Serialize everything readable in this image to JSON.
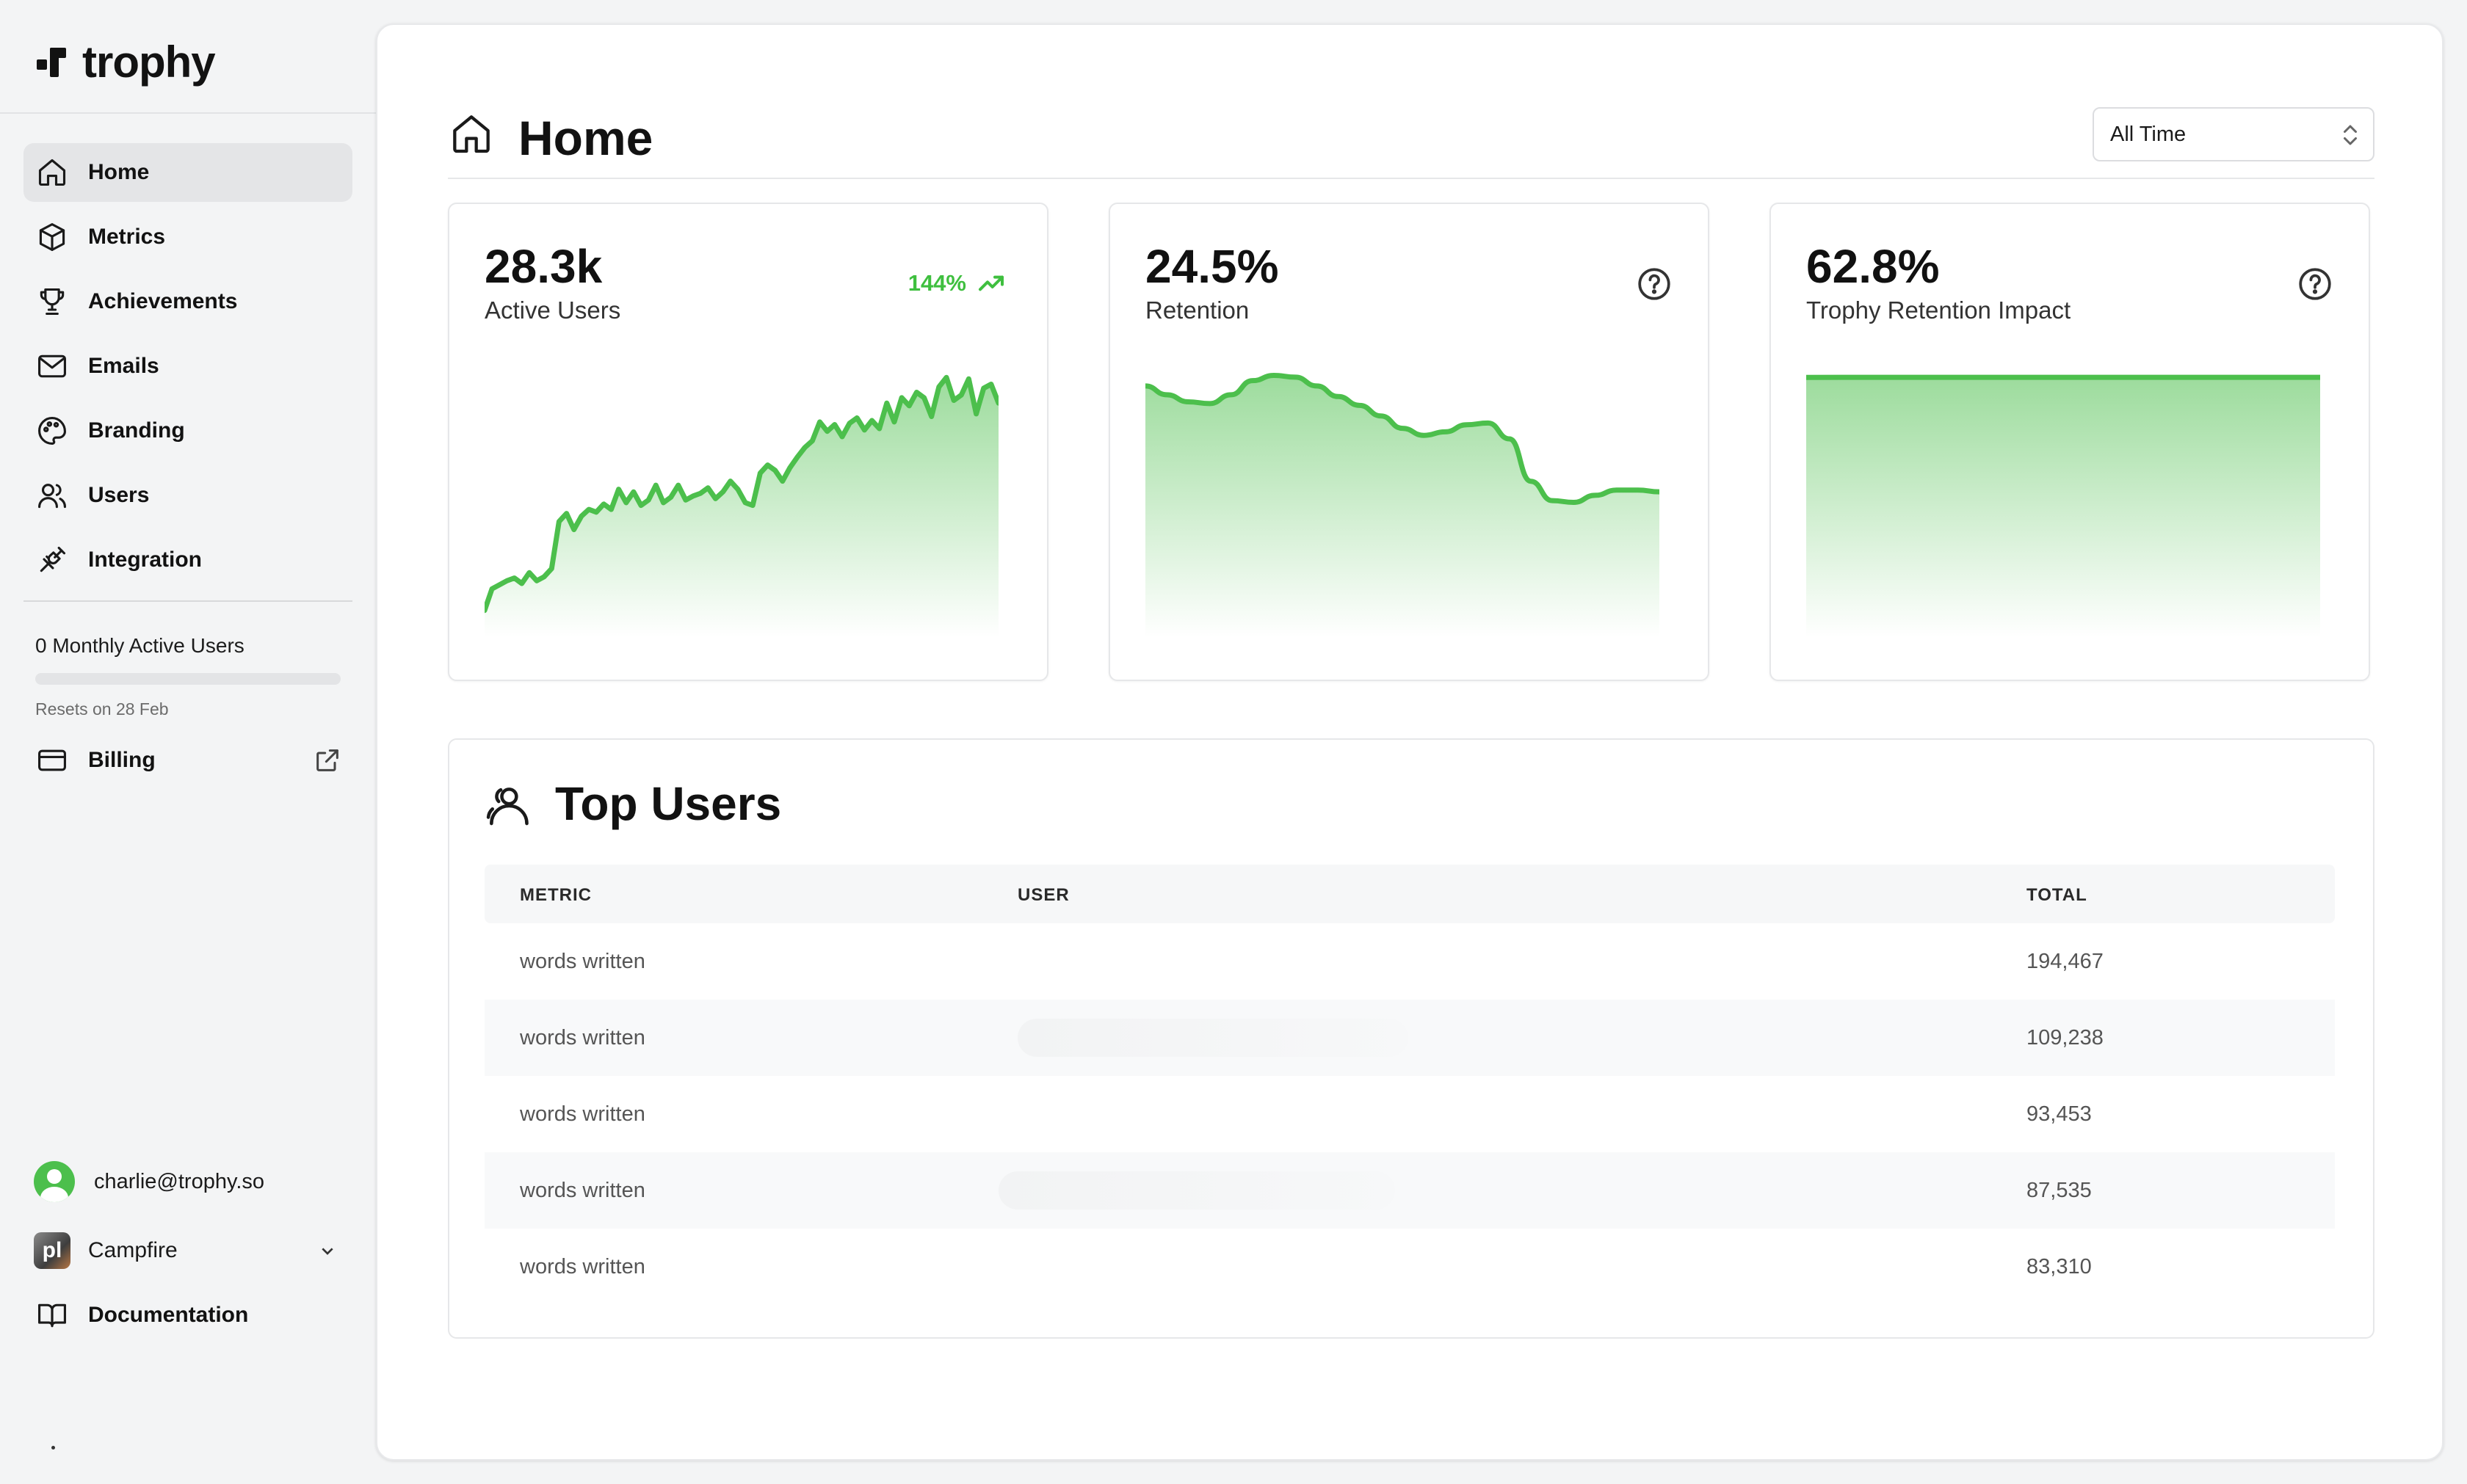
{
  "brand": {
    "name": "trophy"
  },
  "nav": {
    "items": [
      {
        "label": "Home",
        "icon": "home-icon",
        "active": true
      },
      {
        "label": "Metrics",
        "icon": "cube-icon",
        "active": false
      },
      {
        "label": "Achievements",
        "icon": "trophy-icon",
        "active": false
      },
      {
        "label": "Emails",
        "icon": "mail-icon",
        "active": false
      },
      {
        "label": "Branding",
        "icon": "palette-icon",
        "active": false
      },
      {
        "label": "Users",
        "icon": "users-icon",
        "active": false
      },
      {
        "label": "Integration",
        "icon": "plug-icon",
        "active": false
      }
    ]
  },
  "usage": {
    "text": "0 Monthly Active Users",
    "progress": 0,
    "reset_text": "Resets on 28 Feb"
  },
  "billing": {
    "label": "Billing",
    "icon": "credit-card-icon",
    "link_icon": "external-link-icon"
  },
  "account": {
    "email": "charlie@trophy.so"
  },
  "project": {
    "name": "Campfire",
    "logo_text": "pl"
  },
  "docs": {
    "label": "Documentation",
    "icon": "book-icon"
  },
  "header": {
    "title": "Home",
    "title_icon": "home-icon",
    "range": "All Time"
  },
  "cards": [
    {
      "value": "28.3k",
      "label": "Active Users",
      "change": "144%",
      "trend": "up"
    },
    {
      "value": "24.5%",
      "label": "Retention"
    },
    {
      "value": "62.8%",
      "label": "Trophy Retention Impact"
    }
  ],
  "colors": {
    "accent": "#4cbf4c",
    "text": "#121212",
    "muted": "#555555"
  },
  "top_users": {
    "title": "Top Users",
    "columns": [
      "METRIC",
      "USER",
      "TOTAL"
    ],
    "rows": [
      {
        "metric": "words written",
        "total": "194,467"
      },
      {
        "metric": "words written",
        "total": "109,238"
      },
      {
        "metric": "words written",
        "total": "93,453"
      },
      {
        "metric": "words written",
        "total": "87,535"
      },
      {
        "metric": "words written",
        "total": "83,310"
      }
    ]
  },
  "chart_data": [
    {
      "type": "area",
      "series": [
        {
          "values": [
            3.0,
            4.6,
            4.9,
            5.2,
            5.4,
            5.0,
            5.8,
            5.2,
            5.5,
            6.1,
            9.6,
            10.2,
            9.0,
            10.0,
            10.5,
            10.3,
            10.9,
            10.5,
            12.0,
            11.0,
            11.8,
            10.8,
            11.2,
            12.3,
            11.0,
            11.4,
            12.3,
            11.2,
            11.5,
            11.7,
            12.1,
            11.3,
            11.8,
            12.6,
            12.0,
            11.0,
            10.8,
            13.2,
            13.8,
            13.4,
            12.6,
            13.6,
            14.4,
            15.1,
            15.6,
            17.0,
            16.3,
            16.8,
            15.9,
            16.9,
            17.3,
            16.4,
            17.1,
            16.5,
            18.4,
            17.0,
            18.8,
            18.2,
            19.2,
            18.8,
            17.4,
            19.6,
            20.3,
            18.6,
            19.0,
            20.2,
            17.6,
            19.5,
            19.8,
            18.4
          ]
        }
      ]
    },
    {
      "type": "area",
      "series": [
        {
          "values": [
            25.4,
            24.9,
            24.5,
            24.4,
            24.9,
            25.7,
            26.0,
            25.9,
            25.4,
            24.8,
            24.3,
            23.7,
            23.0,
            22.6,
            22.8,
            23.2,
            23.3,
            22.4,
            20.0,
            18.9,
            18.8,
            19.2,
            19.5,
            19.5,
            19.4
          ]
        }
      ]
    },
    {
      "type": "area",
      "series": [
        {
          "values": [
            62.5,
            62.6,
            62.6,
            62.7,
            62.7,
            62.7,
            62.7,
            62.8
          ]
        }
      ]
    }
  ]
}
